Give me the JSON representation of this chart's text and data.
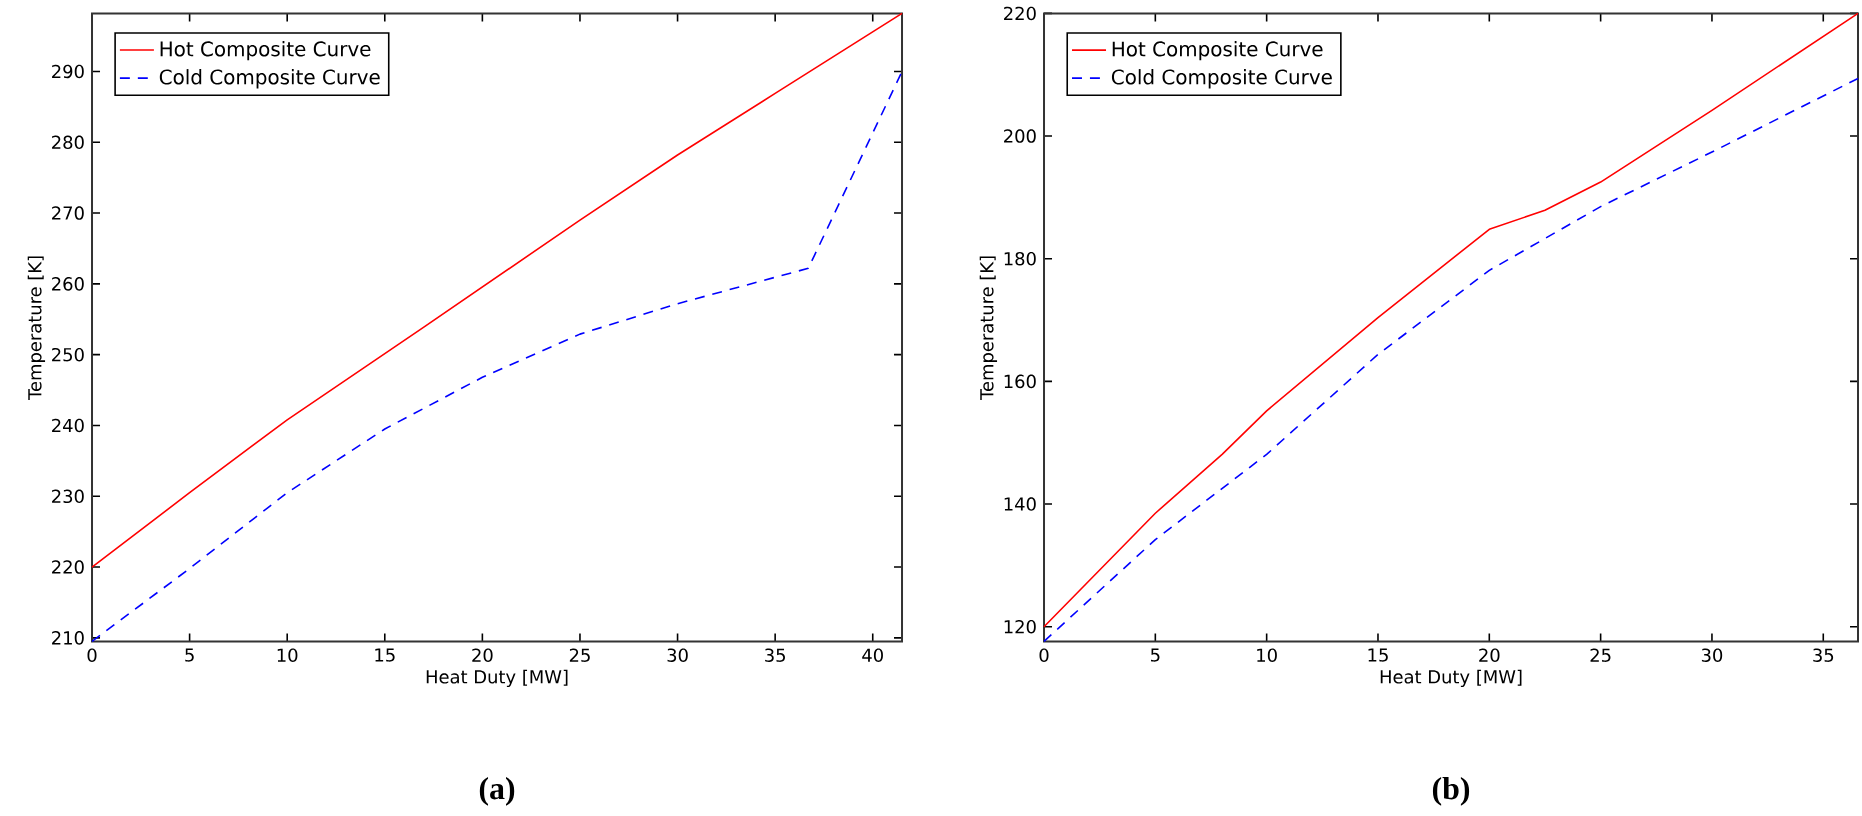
{
  "chart_data": [
    {
      "type": "line",
      "xlabel": "Heat Duty [MW]",
      "ylabel": "Temperature [K]",
      "annotations": [
        "(a)"
      ],
      "xlim": [
        0,
        41.5
      ],
      "ylim": [
        209.5,
        298.2
      ],
      "xticks": [
        0,
        5,
        10,
        15,
        20,
        25,
        30,
        35,
        40
      ],
      "yticks": [
        210,
        220,
        230,
        240,
        250,
        260,
        270,
        280,
        290
      ],
      "legend": "top left",
      "grid": false,
      "series": [
        {
          "name": "Hot Composite Curve",
          "color": "#ff0000",
          "line_style": "solid",
          "x": [
            0,
            5,
            10,
            17,
            25,
            30,
            35,
            41.5
          ],
          "values": [
            220,
            230.5,
            240.8,
            253.9,
            269,
            278.2,
            286.9,
            298.2
          ]
        },
        {
          "name": "Cold Composite Curve",
          "color": "#0000ff",
          "line_style": "dashed",
          "x": [
            0,
            5,
            10,
            15,
            20,
            25,
            30,
            36.7,
            41.5
          ],
          "values": [
            209.5,
            219.8,
            230.5,
            239.5,
            246.8,
            252.9,
            257.2,
            262.2,
            290
          ]
        }
      ]
    },
    {
      "type": "line",
      "xlabel": "Heat Duty [MW]",
      "ylabel": "Temperature [K]",
      "annotations": [
        "(b)"
      ],
      "xlim": [
        0,
        36.56
      ],
      "ylim": [
        117.6,
        220
      ],
      "xticks": [
        0,
        5,
        10,
        15,
        20,
        25,
        30,
        35
      ],
      "yticks": [
        120,
        140,
        160,
        180,
        200,
        220
      ],
      "legend": "top left",
      "grid": false,
      "series": [
        {
          "name": "Hot Composite Curve",
          "color": "#ff0000",
          "line_style": "solid",
          "x": [
            0,
            5,
            8,
            10,
            15,
            20,
            22.5,
            25,
            30,
            36.56
          ],
          "values": [
            120,
            138.5,
            148.1,
            155.2,
            170.4,
            184.8,
            187.9,
            192.5,
            204.2,
            220
          ]
        },
        {
          "name": "Cold Composite Curve",
          "color": "#0000ff",
          "line_style": "dashed",
          "x": [
            0,
            5,
            10,
            15,
            20,
            25,
            30,
            36.56
          ],
          "values": [
            117.6,
            134.2,
            148.1,
            164.4,
            178.1,
            188.5,
            197.4,
            209.4
          ]
        }
      ]
    }
  ]
}
